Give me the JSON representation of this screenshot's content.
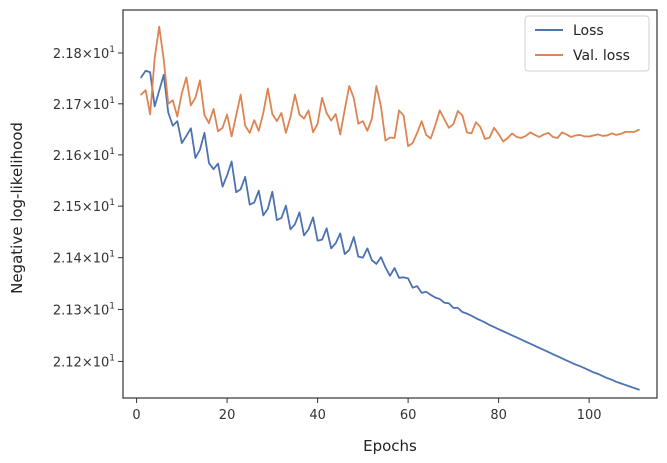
{
  "chart_data": {
    "type": "line",
    "title": "",
    "xlabel": "Epochs",
    "ylabel": "Negative log-likelihood",
    "y_scale": "log",
    "grid": false,
    "legend_position": "top-right",
    "xlim": [
      -3,
      115
    ],
    "ylim": [
      21.13,
      21.885
    ],
    "x_ticks": [
      0,
      20,
      40,
      60,
      80,
      100
    ],
    "x_tick_labels": [
      "0",
      "20",
      "40",
      "60",
      "80",
      "100"
    ],
    "y_ticks": [
      21.2,
      21.3,
      21.4,
      21.5,
      21.6,
      21.7,
      21.8
    ],
    "y_tick_labels": [
      {
        "base": "2.12",
        "exp": "1"
      },
      {
        "base": "2.13",
        "exp": "1"
      },
      {
        "base": "2.14",
        "exp": "1"
      },
      {
        "base": "2.15",
        "exp": "1"
      },
      {
        "base": "2.16",
        "exp": "1"
      },
      {
        "base": "2.17",
        "exp": "1"
      },
      {
        "base": "2.18",
        "exp": "1"
      }
    ],
    "series": [
      {
        "name": "Loss",
        "color": "#4c72b0",
        "x": [
          1,
          2,
          3,
          4,
          5,
          6,
          7,
          8,
          9,
          10,
          11,
          12,
          13,
          14,
          15,
          16,
          17,
          18,
          19,
          20,
          21,
          22,
          23,
          24,
          25,
          26,
          27,
          28,
          29,
          30,
          31,
          32,
          33,
          34,
          35,
          36,
          37,
          38,
          39,
          40,
          41,
          42,
          43,
          44,
          45,
          46,
          47,
          48,
          49,
          50,
          51,
          52,
          53,
          54,
          55,
          56,
          57,
          58,
          59,
          60,
          61,
          62,
          63,
          64,
          65,
          66,
          67,
          68,
          69,
          70,
          71,
          72,
          73,
          74,
          75,
          76,
          77,
          78,
          79,
          80,
          81,
          82,
          83,
          84,
          85,
          86,
          87,
          88,
          89,
          90,
          91,
          92,
          93,
          94,
          95,
          96,
          97,
          98,
          99,
          100,
          101,
          102,
          103,
          104,
          105,
          106,
          107,
          108,
          109,
          110,
          111
        ],
        "values": [
          21.752,
          21.765,
          21.762,
          21.695,
          21.726,
          21.757,
          21.683,
          21.657,
          21.666,
          21.623,
          21.637,
          21.652,
          21.594,
          21.61,
          21.643,
          21.584,
          21.572,
          21.583,
          21.538,
          21.56,
          21.587,
          21.527,
          21.533,
          21.557,
          21.503,
          21.507,
          21.53,
          21.482,
          21.495,
          21.528,
          21.473,
          21.477,
          21.501,
          21.455,
          21.465,
          21.488,
          21.443,
          21.455,
          21.478,
          21.433,
          21.435,
          21.457,
          21.418,
          21.428,
          21.447,
          21.407,
          21.415,
          21.44,
          21.402,
          21.4,
          21.418,
          21.395,
          21.388,
          21.401,
          21.381,
          21.365,
          21.38,
          21.361,
          21.362,
          21.36,
          21.342,
          21.345,
          21.332,
          21.334,
          21.328,
          21.323,
          21.32,
          21.313,
          21.312,
          21.303,
          21.303,
          21.295,
          21.292,
          21.288,
          21.283,
          21.279,
          21.275,
          21.27,
          21.266,
          21.262,
          21.258,
          21.254,
          21.25,
          21.246,
          21.242,
          21.238,
          21.234,
          21.23,
          21.226,
          21.222,
          21.218,
          21.214,
          21.21,
          21.206,
          21.202,
          21.198,
          21.194,
          21.191,
          21.187,
          21.183,
          21.179,
          21.176,
          21.172,
          21.168,
          21.165,
          21.161,
          21.158,
          21.155,
          21.152,
          21.149,
          21.146
        ]
      },
      {
        "name": "Val. loss",
        "color": "#dd8452",
        "x": [
          1,
          2,
          3,
          4,
          5,
          6,
          7,
          8,
          9,
          10,
          11,
          12,
          13,
          14,
          15,
          16,
          17,
          18,
          19,
          20,
          21,
          22,
          23,
          24,
          25,
          26,
          27,
          28,
          29,
          30,
          31,
          32,
          33,
          34,
          35,
          36,
          37,
          38,
          39,
          40,
          41,
          42,
          43,
          44,
          45,
          46,
          47,
          48,
          49,
          50,
          51,
          52,
          53,
          54,
          55,
          56,
          57,
          58,
          59,
          60,
          61,
          62,
          63,
          64,
          65,
          66,
          67,
          68,
          69,
          70,
          71,
          72,
          73,
          74,
          75,
          76,
          77,
          78,
          79,
          80,
          81,
          82,
          83,
          84,
          85,
          86,
          87,
          88,
          89,
          90,
          91,
          92,
          93,
          94,
          95,
          96,
          97,
          98,
          99,
          100,
          101,
          102,
          103,
          104,
          105,
          106,
          107,
          108,
          109,
          110,
          111
        ],
        "values": [
          21.718,
          21.727,
          21.679,
          21.79,
          21.852,
          21.787,
          21.7,
          21.707,
          21.675,
          21.721,
          21.752,
          21.697,
          21.712,
          21.746,
          21.678,
          21.662,
          21.69,
          21.646,
          21.653,
          21.679,
          21.636,
          21.677,
          21.718,
          21.657,
          21.643,
          21.668,
          21.647,
          21.682,
          21.73,
          21.68,
          21.666,
          21.682,
          21.643,
          21.674,
          21.718,
          21.679,
          21.671,
          21.687,
          21.644,
          21.661,
          21.712,
          21.682,
          21.667,
          21.68,
          21.64,
          21.689,
          21.735,
          21.711,
          21.661,
          21.666,
          21.647,
          21.671,
          21.735,
          21.695,
          21.628,
          21.634,
          21.633,
          21.687,
          21.677,
          21.617,
          21.623,
          21.643,
          21.666,
          21.639,
          21.632,
          21.658,
          21.687,
          21.67,
          21.653,
          21.66,
          21.686,
          21.677,
          21.644,
          21.642,
          21.664,
          21.654,
          21.631,
          21.634,
          21.653,
          21.641,
          21.626,
          21.633,
          21.642,
          21.635,
          21.633,
          21.637,
          21.644,
          21.639,
          21.635,
          21.64,
          21.643,
          21.635,
          21.633,
          21.644,
          21.64,
          21.635,
          21.638,
          21.639,
          21.636,
          21.636,
          21.638,
          21.64,
          21.637,
          21.638,
          21.642,
          21.639,
          21.641,
          21.645,
          21.645,
          21.645,
          21.649
        ]
      }
    ]
  }
}
